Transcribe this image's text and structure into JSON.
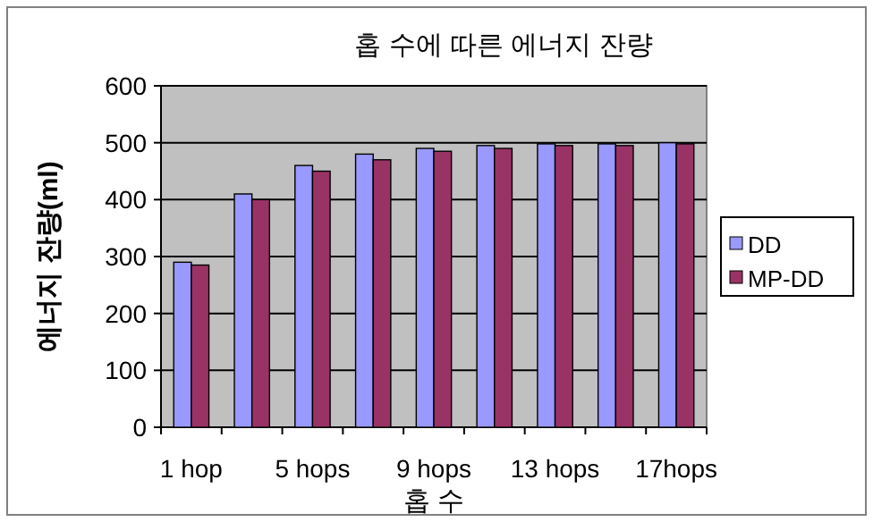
{
  "chart_data": {
    "type": "bar",
    "title": "홉 수에 따른 에너지 잔량",
    "xlabel": "홉 수",
    "ylabel": "에너지 잔량(ml)",
    "categories": [
      "1 hop",
      null,
      "5 hops",
      null,
      "9 hops",
      null,
      "13 hops",
      null,
      "17hops"
    ],
    "series": [
      {
        "name": "DD",
        "color": "#9999ff",
        "values": [
          290,
          410,
          460,
          480,
          490,
          495,
          498,
          498,
          500
        ]
      },
      {
        "name": "MP-DD",
        "color": "#993366",
        "values": [
          285,
          400,
          450,
          470,
          485,
          490,
          495,
          495,
          498
        ]
      }
    ],
    "ylim": [
      0,
      600
    ],
    "yticks": [
      0,
      100,
      200,
      300,
      400,
      500,
      600
    ],
    "grid": "y",
    "legend": "right"
  }
}
